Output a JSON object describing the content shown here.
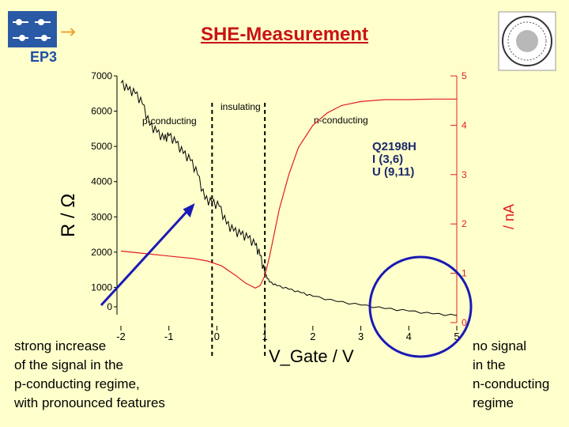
{
  "header": {
    "title": "SHE-Measurement",
    "logo_text": "EP3"
  },
  "captions": {
    "left": "strong increase\nof the signal in the\np-conducting regime,\nwith pronounced features",
    "right": "no signal\nin the\nn-conducting\nregime"
  },
  "colors": {
    "background": "#ffffcc",
    "title": "#c81414",
    "resistance": "#000000",
    "she_signal": "#e02020",
    "annotation": "#1a1ab4",
    "logo": "#2a59a5"
  },
  "chart_data": {
    "type": "line",
    "title": "",
    "xlabel": "V_Gate / V",
    "ylabel_left": "R / Ω",
    "ylabel_right": "/ nA",
    "xlim": [
      -2,
      5
    ],
    "ylim_left": [
      0,
      7000
    ],
    "ylim_right": [
      0,
      5
    ],
    "x_ticks": [
      "-2",
      "-1",
      "0",
      "1",
      "2",
      "3",
      "4",
      "5"
    ],
    "y_left_ticks": [
      "0",
      "1000",
      "2000",
      "3000",
      "4000",
      "5000",
      "6000",
      "7000"
    ],
    "y_right_ticks": [
      "0",
      "1",
      "2",
      "3",
      "4",
      "5"
    ],
    "grid": false,
    "region_labels": [
      "p-conducting",
      "insulating",
      "n-conducting"
    ],
    "region_boundaries": [
      -0.1,
      1.0
    ],
    "sample_label": [
      "Q2198H",
      "I (3,6)",
      "U (9,11)"
    ],
    "series": [
      {
        "axis": "left",
        "color": "#000000",
        "x": [
          -2,
          -1.85,
          -1.7,
          -1.55,
          -1.4,
          -1.25,
          -1.1,
          -1.0,
          -0.85,
          -0.7,
          -0.55,
          -0.4,
          -0.25,
          -0.1,
          0.05,
          0.2,
          0.35,
          0.5,
          0.65,
          0.8,
          0.9,
          1.0,
          1.1,
          1.25,
          1.5,
          1.75,
          2.0,
          2.5,
          3.0,
          3.5,
          4.0,
          4.5,
          5.0
        ],
        "y": [
          6800,
          6600,
          6500,
          6200,
          5600,
          5400,
          5200,
          5300,
          5100,
          4800,
          4600,
          4200,
          3500,
          3400,
          3300,
          2800,
          2600,
          2500,
          2400,
          2200,
          1900,
          1400,
          1150,
          1050,
          950,
          850,
          750,
          600,
          500,
          400,
          330,
          250,
          200
        ]
      },
      {
        "axis": "right",
        "color": "#e02020",
        "x": [
          -2,
          -1.5,
          -1.0,
          -0.5,
          -0.2,
          0.1,
          0.4,
          0.6,
          0.8,
          0.9,
          1.0,
          1.1,
          1.3,
          1.5,
          1.7,
          2.0,
          2.3,
          2.6,
          3.0,
          3.5,
          4.0,
          4.5,
          5.0
        ],
        "y": [
          1.45,
          1.4,
          1.35,
          1.3,
          1.25,
          1.15,
          0.95,
          0.8,
          0.7,
          0.75,
          0.95,
          1.35,
          2.3,
          3.0,
          3.55,
          4.0,
          4.25,
          4.4,
          4.48,
          4.52,
          4.52,
          4.53,
          4.53
        ]
      }
    ]
  }
}
